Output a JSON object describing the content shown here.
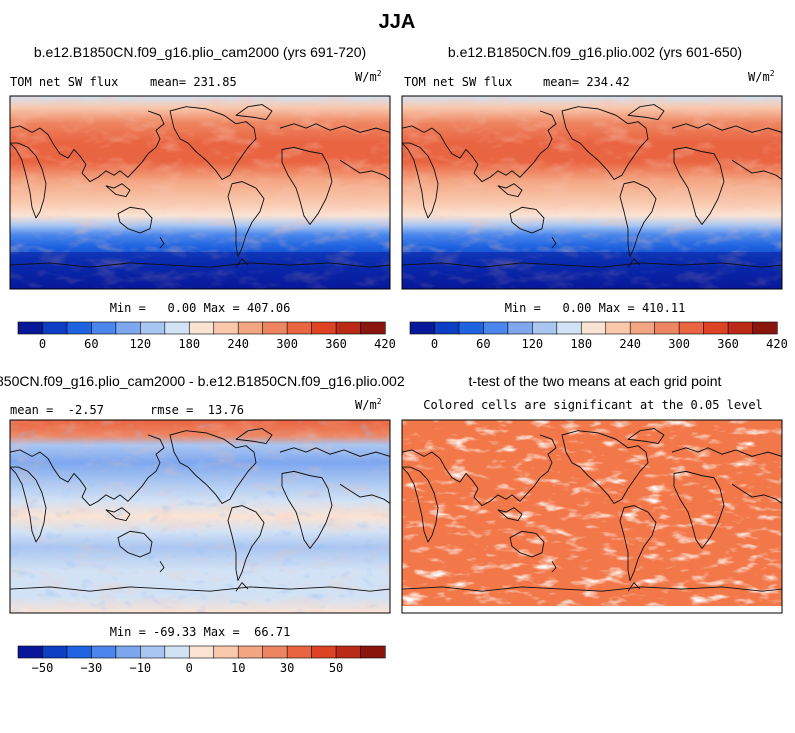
{
  "figure": {
    "title": "JJA"
  },
  "panels": [
    {
      "id": "top-left",
      "case_title": "b.e12.B1850CN.f09_g16.plio_cam2000 (yrs 691-720)",
      "variable": "TOM net SW flux",
      "mean_text": "mean= 231.85",
      "units": "W/m",
      "units_exp": "2",
      "stats": "Min =   0.00 Max = 407.06",
      "colorbar": "abs"
    },
    {
      "id": "top-right",
      "case_title": "b.e12.B1850CN.f09_g16.plio.002 (yrs 601-650)",
      "variable": "TOM net SW flux",
      "mean_text": "mean= 234.42",
      "units": "W/m",
      "units_exp": "2",
      "stats": "Min =   0.00 Max = 410.11",
      "colorbar": "abs"
    },
    {
      "id": "bottom-left",
      "case_title": "850CN.f09_g16.plio_cam2000 - b.e12.B1850CN.f09_g16.plio.002",
      "mean_text": "mean =  -2.57",
      "rmse_text": "rmse =  13.76",
      "units": "W/m",
      "units_exp": "2",
      "stats": "Min = -69.33 Max =  66.71",
      "colorbar": "diff"
    },
    {
      "id": "bottom-right",
      "case_title": "t-test of the two means at each grid point",
      "subtitle": "Colored cells are significant at the 0.05 level"
    }
  ],
  "colorbars": {
    "abs": {
      "colors": [
        "#08179a",
        "#0c3fc4",
        "#1f63e0",
        "#4a86eb",
        "#7ea7ef",
        "#a9c6f2",
        "#d2e2f5",
        "#fbe3d4",
        "#f9c8ad",
        "#f4a683",
        "#ee8561",
        "#e96441",
        "#dd4225",
        "#bb2a17",
        "#8a150d"
      ],
      "tick_labels": [
        "0",
        "60",
        "120",
        "180",
        "240",
        "300",
        "360",
        "420"
      ]
    },
    "diff": {
      "colors": [
        "#08179a",
        "#0c3fc4",
        "#1f63e0",
        "#4a86eb",
        "#7ea7ef",
        "#a9c6f2",
        "#d2e2f5",
        "#fbe3d4",
        "#f9c8ad",
        "#f4a683",
        "#ee8561",
        "#e96441",
        "#dd4225",
        "#bb2a17",
        "#8a150d"
      ],
      "tick_labels": [
        "−50",
        "−30",
        "−10",
        "0",
        "10",
        "30",
        "50"
      ]
    }
  },
  "chart_data": [
    {
      "type": "heatmap",
      "title": "b.e12.B1850CN.f09_g16.plio_cam2000 (yrs 691-720)",
      "variable": "TOM net SW flux",
      "units": "W/m2",
      "mean": 231.85,
      "min": 0.0,
      "max": 407.06,
      "colorbar_ticks": [
        0,
        60,
        120,
        180,
        240,
        300,
        360,
        420
      ]
    },
    {
      "type": "heatmap",
      "title": "b.e12.B1850CN.f09_g16.plio.002 (yrs 601-650)",
      "variable": "TOM net SW flux",
      "units": "W/m2",
      "mean": 234.42,
      "min": 0.0,
      "max": 410.11,
      "colorbar_ticks": [
        0,
        60,
        120,
        180,
        240,
        300,
        360,
        420
      ]
    },
    {
      "type": "heatmap",
      "title": "850CN.f09_g16.plio_cam2000 - b.e12.B1850CN.f09_g16.plio.002",
      "units": "W/m2",
      "mean": -2.57,
      "rmse": 13.76,
      "min": -69.33,
      "max": 66.71,
      "colorbar_ticks": [
        -50,
        -30,
        -10,
        0,
        10,
        30,
        50
      ]
    },
    {
      "type": "heatmap",
      "title": "t-test of the two means at each grid point",
      "subtitle": "Colored cells are significant at the 0.05 level"
    }
  ]
}
